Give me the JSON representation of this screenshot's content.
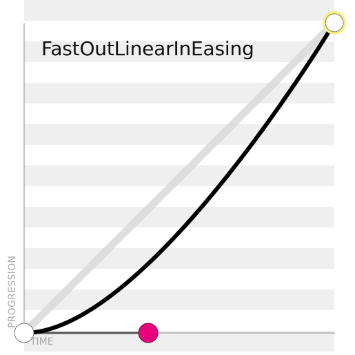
{
  "title": "FastOutLinearInEasing",
  "axes": {
    "x_label": "TIME",
    "y_label": "PROGRESSION"
  },
  "easing": {
    "type": "cubic-bezier",
    "p1": [
      0.4,
      0.0
    ],
    "p2": [
      1.0,
      1.0
    ],
    "start": [
      0,
      0
    ],
    "end": [
      1,
      1
    ]
  },
  "colors": {
    "curve": "#000000",
    "linear_reference": "#dcdcdc",
    "control_handle_p1": "#e6007e",
    "end_handle_glow": "#f4f47a",
    "stripe": "#efefef"
  }
}
